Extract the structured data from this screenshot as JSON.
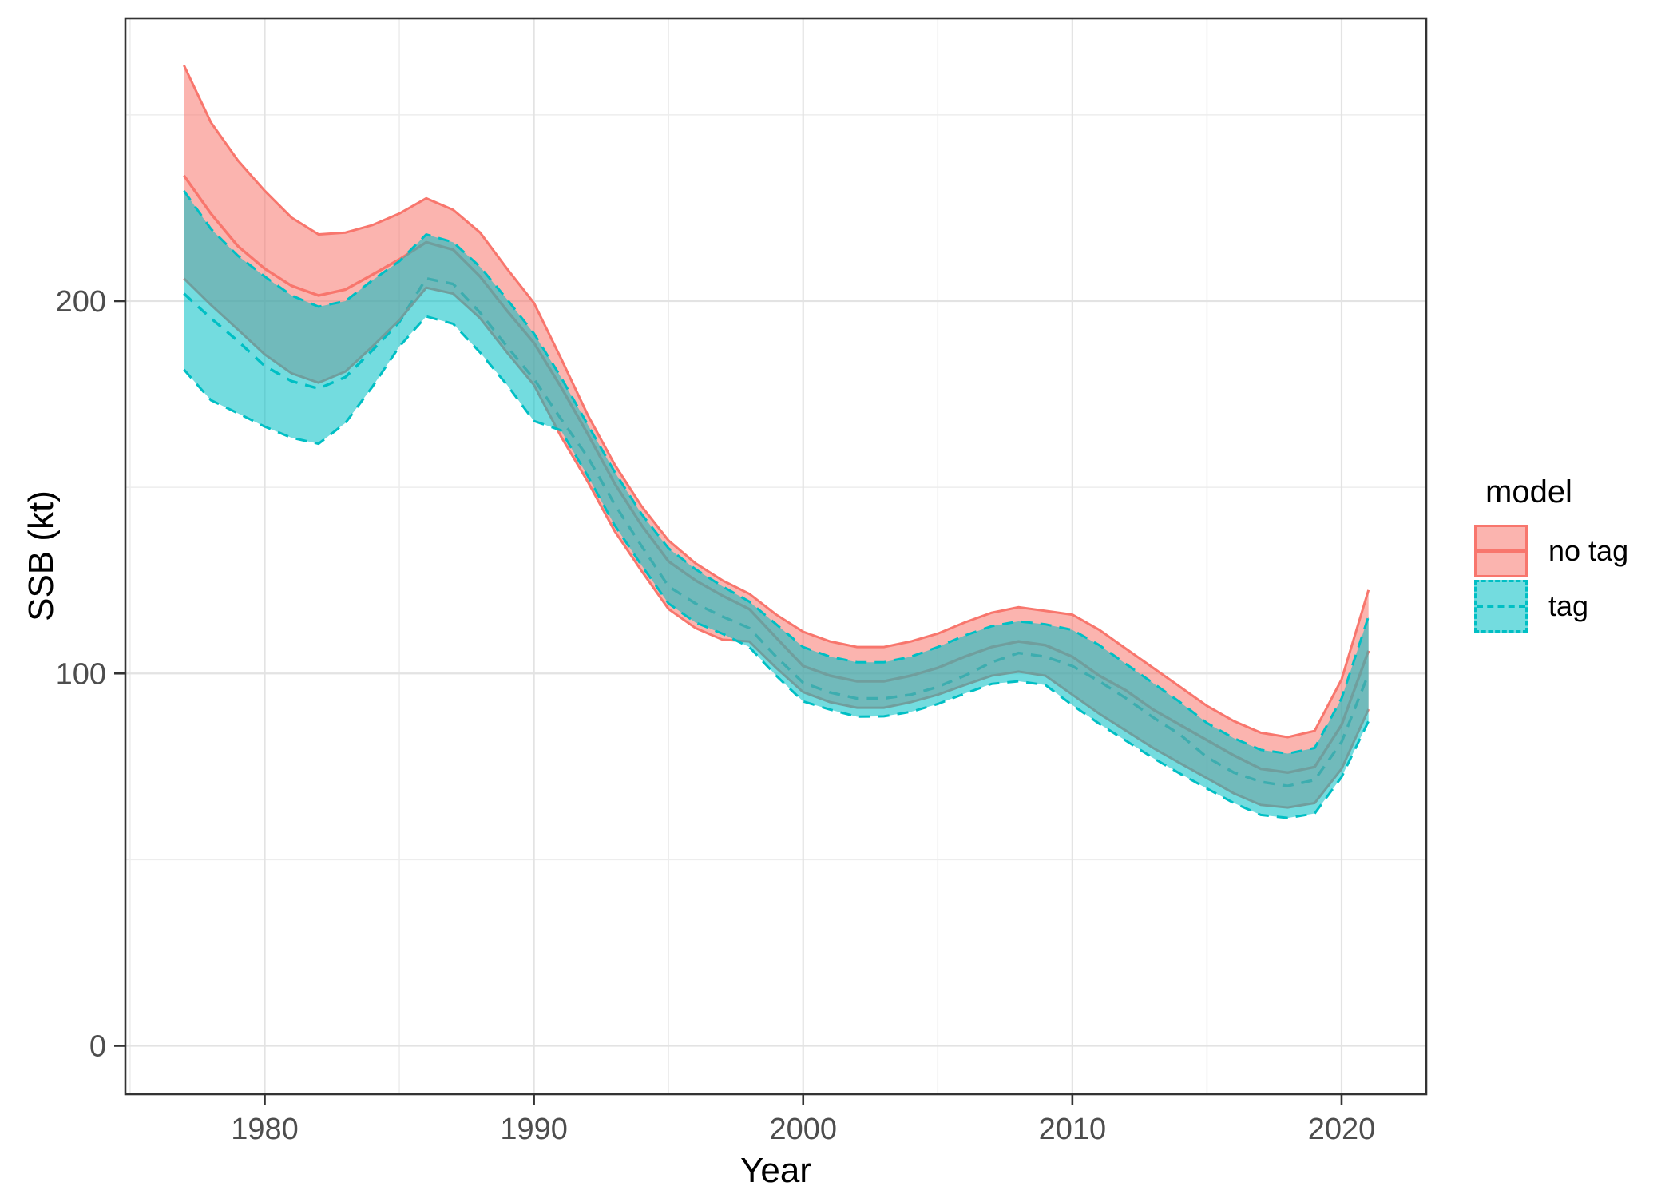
{
  "chart_data": {
    "type": "area",
    "title": "",
    "xlabel": "Year",
    "ylabel": "SSB (kt)",
    "x_ticks": [
      1980,
      1990,
      2000,
      2010,
      2020
    ],
    "x_minor_ticks": [
      1975,
      1985,
      1995,
      2005,
      2015
    ],
    "y_ticks": [
      0,
      100,
      200
    ],
    "y_minor_ticks": [
      50,
      150,
      250
    ],
    "xlim": [
      1974.8,
      2023.2
    ],
    "ylim": [
      -13,
      276
    ],
    "grid": "on",
    "years": [
      1977,
      1978,
      1979,
      1980,
      1981,
      1982,
      1983,
      1984,
      1985,
      1986,
      1987,
      1988,
      1989,
      1990,
      1991,
      1992,
      1993,
      1994,
      1995,
      1996,
      1997,
      1998,
      1999,
      2000,
      2001,
      2002,
      2003,
      2004,
      2005,
      2006,
      2007,
      2008,
      2009,
      2010,
      2011,
      2012,
      2013,
      2014,
      2015,
      2016,
      2017,
      2018,
      2019,
      2020,
      2021
    ],
    "series": [
      {
        "name": "no tag",
        "color": "#F8766D",
        "linetype": "solid",
        "upper": [
          263.3,
          248.0,
          237.8,
          229.6,
          222.4,
          217.9,
          218.4,
          220.4,
          223.5,
          227.6,
          224.5,
          218.4,
          208.7,
          199.5,
          184.7,
          169.4,
          156.1,
          144.9,
          135.7,
          129.6,
          125.0,
          121.4,
          115.8,
          111.2,
          108.6,
          107.1,
          107.1,
          108.6,
          110.7,
          113.7,
          116.3,
          117.8,
          116.8,
          115.8,
          111.7,
          106.6,
          101.5,
          96.4,
          91.3,
          87.2,
          84.1,
          82.9,
          84.6,
          98.4,
          122.4
        ],
        "central": [
          233.7,
          223.5,
          214.8,
          208.7,
          204.1,
          201.5,
          203.1,
          207.1,
          211.2,
          215.8,
          213.8,
          206.6,
          197.4,
          188.8,
          177.0,
          164.3,
          151.0,
          139.8,
          130.1,
          125.0,
          120.9,
          117.3,
          109.6,
          102.0,
          99.4,
          97.9,
          97.9,
          99.4,
          101.5,
          104.5,
          107.1,
          108.6,
          107.6,
          104.5,
          99.4,
          95.4,
          90.3,
          86.2,
          82.1,
          78.0,
          74.4,
          73.4,
          74.9,
          86.2,
          106.1
        ],
        "lower": [
          206.1,
          199.0,
          192.4,
          185.7,
          180.6,
          178.1,
          181.1,
          187.8,
          194.9,
          203.6,
          202.0,
          195.4,
          186.2,
          177.5,
          163.7,
          151.5,
          138.2,
          127.5,
          117.3,
          112.2,
          109.1,
          108.6,
          101.5,
          95.0,
          92.3,
          90.8,
          90.8,
          92.3,
          94.3,
          96.9,
          99.4,
          100.5,
          99.4,
          94.3,
          89.2,
          84.6,
          80.0,
          75.9,
          71.9,
          67.8,
          64.7,
          64.0,
          65.2,
          74.4,
          90.4
        ]
      },
      {
        "name": "tag",
        "color": "#00BFC4",
        "linetype": "dashed",
        "upper": [
          229.6,
          219.4,
          212.2,
          206.6,
          201.5,
          198.5,
          200.0,
          205.6,
          210.7,
          217.9,
          215.8,
          209.2,
          200.5,
          191.3,
          179.6,
          166.8,
          154.1,
          142.8,
          133.6,
          128.0,
          123.4,
          119.3,
          113.2,
          107.1,
          104.5,
          103.0,
          103.0,
          104.5,
          107.1,
          110.2,
          112.7,
          114.0,
          113.2,
          111.7,
          107.6,
          102.5,
          97.4,
          92.3,
          86.7,
          82.6,
          79.5,
          78.5,
          80.0,
          93.3,
          115.3
        ],
        "central": [
          202.0,
          195.4,
          189.3,
          182.6,
          178.5,
          176.5,
          179.6,
          186.8,
          194.4,
          206.1,
          204.6,
          196.9,
          187.8,
          179.1,
          168.4,
          158.1,
          145.4,
          134.2,
          123.4,
          118.8,
          115.3,
          112.2,
          104.5,
          97.5,
          94.9,
          93.3,
          93.3,
          94.3,
          96.4,
          99.4,
          103.0,
          105.5,
          104.5,
          102.0,
          97.9,
          93.3,
          88.2,
          83.6,
          77.5,
          73.4,
          70.9,
          69.8,
          71.4,
          81.6,
          99.9
        ],
        "lower": [
          181.6,
          173.4,
          169.9,
          166.3,
          163.3,
          161.7,
          167.3,
          177.0,
          187.8,
          195.9,
          193.9,
          186.2,
          177.5,
          167.8,
          165.3,
          153.0,
          139.8,
          129.0,
          118.8,
          113.7,
          110.7,
          107.1,
          99.4,
          92.5,
          90.3,
          88.4,
          88.5,
          89.7,
          91.8,
          94.6,
          97.2,
          97.9,
          96.9,
          91.5,
          86.5,
          81.9,
          77.3,
          73.1,
          69.1,
          65.2,
          62.0,
          61.2,
          62.4,
          72.2,
          87.2
        ]
      }
    ],
    "fill_alpha": 0.55,
    "legend": {
      "title": "model",
      "position": "right",
      "entries": [
        {
          "label": "no tag"
        },
        {
          "label": "tag"
        }
      ]
    }
  },
  "colors": {
    "no_tag": "#F8766D",
    "tag": "#00BFC4",
    "grid_major": "#E3E3E3",
    "grid_minor": "#EDEDED",
    "panel_border": "#333333",
    "tick_label": "#4D4D4D"
  }
}
